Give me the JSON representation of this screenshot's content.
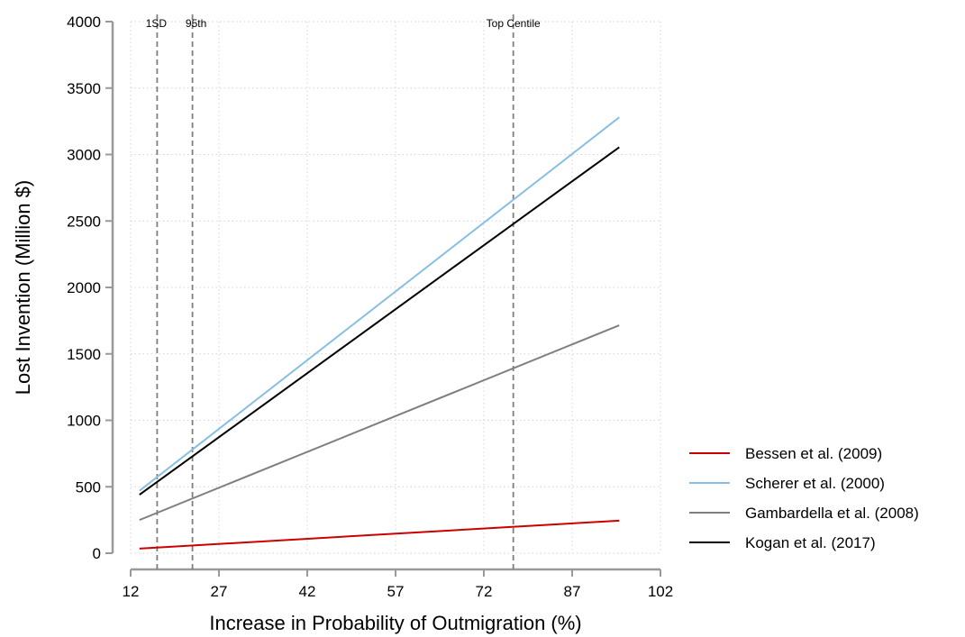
{
  "chart_data": {
    "type": "line",
    "title": "",
    "xlabel": "Increase in Probability of Outmigration (%)",
    "ylabel": "Lost Invention (Million $)",
    "xlim": [
      12,
      102
    ],
    "ylim": [
      0,
      4000
    ],
    "x_ticks": [
      12,
      27,
      42,
      57,
      72,
      87,
      102
    ],
    "y_ticks": [
      0,
      500,
      1000,
      1500,
      2000,
      2500,
      3000,
      3500,
      4000
    ],
    "grid": true,
    "legend_position": "right",
    "reference_lines": [
      {
        "label": "1SD",
        "x": 16.5
      },
      {
        "label": "95th",
        "x": 22.5
      },
      {
        "label": "Top Centile",
        "x": 77
      }
    ],
    "series": [
      {
        "name": "Bessen et al. (2009)",
        "color": "#cc0000",
        "x": [
          13.5,
          95
        ],
        "values": [
          35,
          245
        ]
      },
      {
        "name": "Scherer et al. (2000)",
        "color": "#87bfe3",
        "x": [
          13.5,
          95
        ],
        "values": [
          470,
          3280
        ]
      },
      {
        "name": "Gambardella et al. (2008)",
        "color": "#7f7f7f",
        "x": [
          13.5,
          95
        ],
        "values": [
          250,
          1715
        ]
      },
      {
        "name": "Kogan et al. (2017)",
        "color": "#000000",
        "x": [
          13.5,
          95
        ],
        "values": [
          440,
          3055
        ]
      }
    ]
  }
}
